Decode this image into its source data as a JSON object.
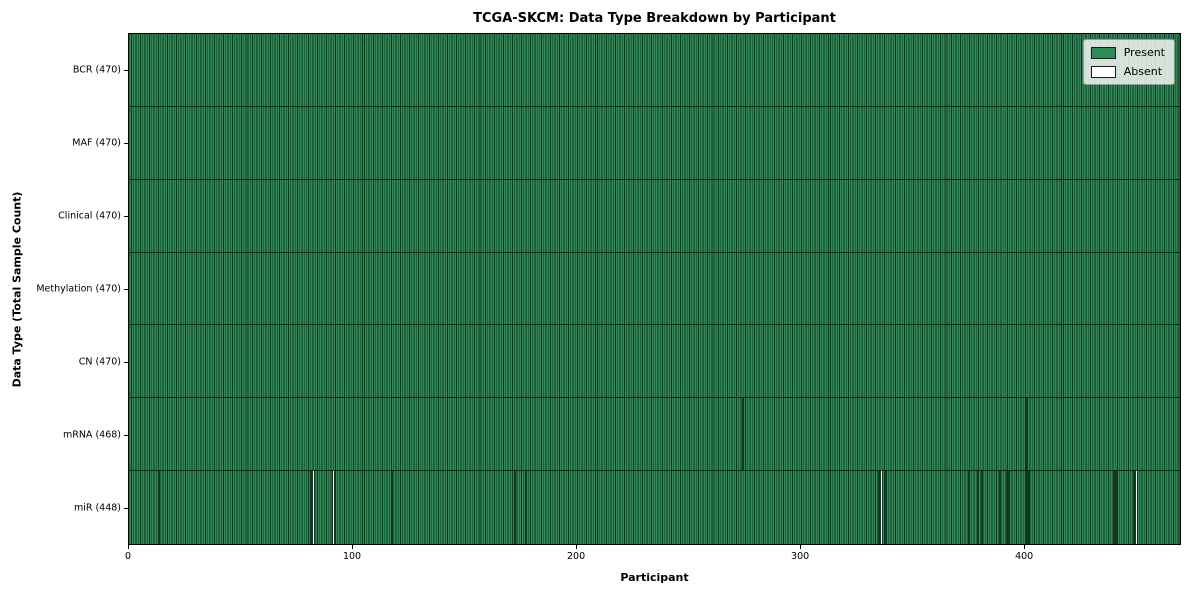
{
  "chart_data": {
    "type": "heatmap",
    "title": "TCGA-SKCM: Data Type Breakdown by Participant",
    "xlabel": "Participant",
    "ylabel": "Data Type (Total Sample Count)",
    "x_range": [
      0,
      470
    ],
    "x_ticks": [
      0,
      100,
      200,
      300,
      400
    ],
    "n_participants": 470,
    "grid": false,
    "legend_position": "upper-right",
    "legend": [
      {
        "label": "Present",
        "color": "#2e8b57"
      },
      {
        "label": "Absent",
        "color": "#ffffff"
      }
    ],
    "colors": {
      "present": "#2e8b57",
      "absent": "#ffffff",
      "bar_edge": "#123823",
      "row_divider": "#0d2616",
      "spine": "#000000"
    },
    "rows": [
      {
        "name": "BCR",
        "label": "BCR (470)",
        "present_count": 470,
        "absent_participants": []
      },
      {
        "name": "MAF",
        "label": "MAF (470)",
        "present_count": 470,
        "absent_participants": []
      },
      {
        "name": "Clinical",
        "label": "Clinical (470)",
        "present_count": 470,
        "absent_participants": []
      },
      {
        "name": "Methylation",
        "label": "Methylation (470)",
        "present_count": 470,
        "absent_participants": []
      },
      {
        "name": "CN",
        "label": "CN (470)",
        "present_count": 470,
        "absent_participants": []
      },
      {
        "name": "mRNA",
        "label": "mRNA (468)",
        "present_count": 468,
        "absent_participants": [
          274,
          401
        ]
      },
      {
        "name": "miR",
        "label": "miR (448)",
        "present_count": 448,
        "absent_participants": [
          13,
          81,
          82,
          91,
          117,
          172,
          177,
          335,
          336,
          338,
          375,
          379,
          381,
          389,
          392,
          393,
          401,
          402,
          440,
          441,
          449,
          450
        ]
      }
    ]
  }
}
